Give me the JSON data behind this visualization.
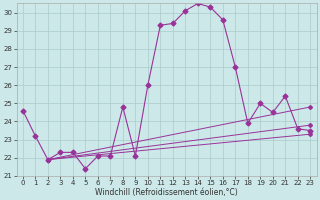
{
  "xlabel": "Windchill (Refroidissement éolien,°C)",
  "xlim": [
    -0.5,
    23.5
  ],
  "ylim": [
    21,
    30.5
  ],
  "yticks": [
    21,
    22,
    23,
    24,
    25,
    26,
    27,
    28,
    29,
    30
  ],
  "xticks": [
    0,
    1,
    2,
    3,
    4,
    5,
    6,
    7,
    8,
    9,
    10,
    11,
    12,
    13,
    14,
    15,
    16,
    17,
    18,
    19,
    20,
    21,
    22,
    23
  ],
  "background_color": "#cce8e8",
  "grid_color": "#aacccc",
  "line_color": "#993399",
  "main_line": {
    "x": [
      0,
      1,
      2,
      3,
      4,
      5,
      6,
      7,
      8,
      9,
      10,
      11,
      12,
      13,
      14,
      15,
      16,
      17,
      18,
      19,
      20,
      21,
      22,
      23
    ],
    "y": [
      24.6,
      23.2,
      21.9,
      22.3,
      22.3,
      21.4,
      22.1,
      22.1,
      24.8,
      22.1,
      26.0,
      29.3,
      29.4,
      30.1,
      30.5,
      30.3,
      29.6,
      27.0,
      23.9,
      25.0,
      24.5,
      25.4,
      23.6,
      23.5
    ]
  },
  "trend_lines": [
    {
      "x": [
        2,
        23
      ],
      "y": [
        21.9,
        24.8
      ]
    },
    {
      "x": [
        2,
        23
      ],
      "y": [
        21.9,
        23.8
      ]
    },
    {
      "x": [
        2,
        23
      ],
      "y": [
        21.9,
        23.3
      ]
    }
  ]
}
